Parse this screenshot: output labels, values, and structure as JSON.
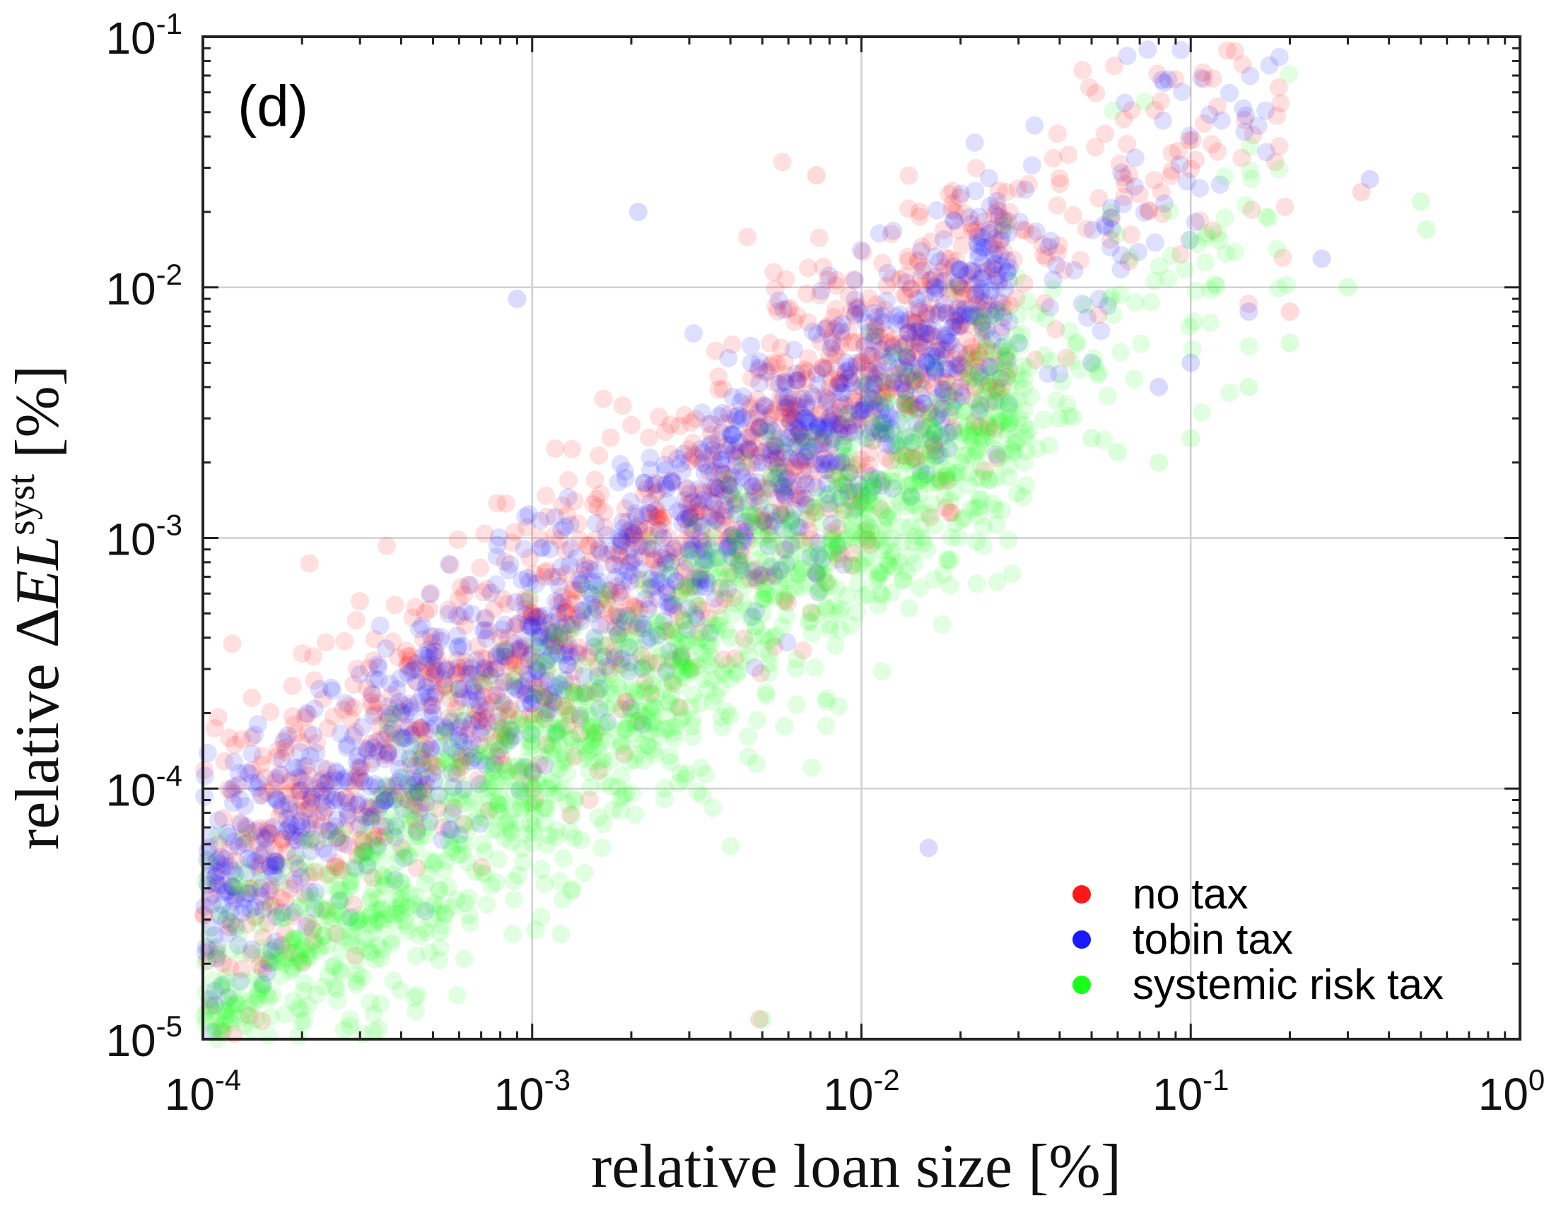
{
  "chart_data": {
    "type": "scatter",
    "panel_label": "(d)",
    "xscale": "log",
    "yscale": "log",
    "xlim": [
      0.0001,
      1
    ],
    "ylim": [
      1e-05,
      0.1
    ],
    "grid": true,
    "legend_position": "bottom-right",
    "xlabel": "relative loan size [%]",
    "ylabel": {
      "prefix": "relative ",
      "delta": "Δ",
      "main": "EL",
      "superscript": "syst",
      "suffix": " [%]"
    },
    "x_ticks": [
      {
        "value": 0.0001,
        "base": "10",
        "exp": "-4"
      },
      {
        "value": 0.001,
        "base": "10",
        "exp": "-3"
      },
      {
        "value": 0.01,
        "base": "10",
        "exp": "-2"
      },
      {
        "value": 0.1,
        "base": "10",
        "exp": "-1"
      },
      {
        "value": 1,
        "base": "10",
        "exp": "0"
      }
    ],
    "y_ticks": [
      {
        "value": 1e-05,
        "base": "10",
        "exp": "-5"
      },
      {
        "value": 0.0001,
        "base": "10",
        "exp": "-4"
      },
      {
        "value": 0.001,
        "base": "10",
        "exp": "-3"
      },
      {
        "value": 0.01,
        "base": "10",
        "exp": "-2"
      },
      {
        "value": 0.1,
        "base": "10",
        "exp": "-1"
      }
    ],
    "series": [
      {
        "name": "no tax",
        "color": "#ff1a1a",
        "trend": "log10(y) ≈ log10(x) − 0.4, spread ≈ 0.3 decades",
        "points": [
          [
            0.00012,
            2.8e-05
          ],
          [
            0.00015,
            5e-05
          ],
          [
            0.0002,
            9e-05
          ],
          [
            0.00025,
            0.00011
          ],
          [
            0.0003,
            0.00012
          ],
          [
            0.0004,
            0.0002
          ],
          [
            0.0005,
            0.0003
          ],
          [
            0.0006,
            0.00025
          ],
          [
            0.0008,
            0.0004
          ],
          [
            0.001,
            0.0005
          ],
          [
            0.0012,
            0.0007
          ],
          [
            0.0015,
            0.0008
          ],
          [
            0.002,
            0.001
          ],
          [
            0.0025,
            0.0012
          ],
          [
            0.003,
            0.0015
          ],
          [
            0.004,
            0.0018
          ],
          [
            0.005,
            0.0022
          ],
          [
            0.006,
            0.003
          ],
          [
            0.008,
            0.004
          ],
          [
            0.01,
            0.005
          ],
          [
            0.012,
            0.006
          ],
          [
            0.015,
            0.008
          ],
          [
            0.02,
            0.01
          ],
          [
            0.025,
            0.012
          ],
          [
            0.0073,
            0.028
          ],
          [
            0.2,
            0.008
          ],
          [
            0.33,
            0.024
          ],
          [
            0.0028,
            0.00021
          ],
          [
            0.0049,
            1.2e-05
          ]
        ]
      },
      {
        "name": "tobin tax",
        "color": "#1a1aff",
        "trend": "log10(y) ≈ log10(x) − 0.45, spread ≈ 0.25 decades",
        "points": [
          [
            0.00011,
            2.1e-05
          ],
          [
            0.00015,
            4e-05
          ],
          [
            0.0002,
            7e-05
          ],
          [
            0.00025,
            9e-05
          ],
          [
            0.0003,
            0.00011
          ],
          [
            0.0004,
            0.00016
          ],
          [
            0.0005,
            0.0002
          ],
          [
            0.0006,
            0.00025
          ],
          [
            0.0008,
            0.00035
          ],
          [
            0.001,
            0.00045
          ],
          [
            0.0012,
            0.0005
          ],
          [
            0.0015,
            0.0006
          ],
          [
            0.002,
            0.0008
          ],
          [
            0.0025,
            0.001
          ],
          [
            0.003,
            0.0012
          ],
          [
            0.004,
            0.0015
          ],
          [
            0.005,
            0.002
          ],
          [
            0.006,
            0.0025
          ],
          [
            0.008,
            0.003
          ],
          [
            0.01,
            0.004
          ],
          [
            0.012,
            0.005
          ],
          [
            0.015,
            0.006
          ],
          [
            0.02,
            0.007
          ],
          [
            0.03,
            0.006
          ],
          [
            0.05,
            0.005
          ],
          [
            0.08,
            0.004
          ],
          [
            0.1,
            0.005
          ],
          [
            0.15,
            0.008
          ],
          [
            0.25,
            0.013
          ],
          [
            0.35,
            0.027
          ],
          [
            0.0021,
            0.02
          ],
          [
            0.0009,
            0.009
          ],
          [
            0.016,
            5.8e-05
          ]
        ]
      },
      {
        "name": "systemic risk tax",
        "color": "#1aff1a",
        "trend": "log10(y) ≈ log10(x) − 0.95, spread ≈ 0.25 decades",
        "points": [
          [
            0.00012,
            1.2e-05
          ],
          [
            0.00015,
            1.6e-05
          ],
          [
            0.0002,
            2e-05
          ],
          [
            0.0003,
            3e-05
          ],
          [
            0.0004,
            4e-05
          ],
          [
            0.0005,
            5e-05
          ],
          [
            0.0006,
            6e-05
          ],
          [
            0.0008,
            8e-05
          ],
          [
            0.001,
            0.0001
          ],
          [
            0.0012,
            0.00012
          ],
          [
            0.0015,
            0.00015
          ],
          [
            0.002,
            0.0002
          ],
          [
            0.0025,
            0.00025
          ],
          [
            0.003,
            0.0003
          ],
          [
            0.004,
            0.0004
          ],
          [
            0.005,
            0.0005
          ],
          [
            0.006,
            0.0006
          ],
          [
            0.008,
            0.0008
          ],
          [
            0.01,
            0.001
          ],
          [
            0.012,
            0.0012
          ],
          [
            0.015,
            0.0015
          ],
          [
            0.02,
            0.002
          ],
          [
            0.025,
            0.0025
          ],
          [
            0.03,
            0.003
          ],
          [
            0.04,
            0.003
          ],
          [
            0.05,
            0.0025
          ],
          [
            0.06,
            0.0022
          ],
          [
            0.08,
            0.002
          ],
          [
            0.1,
            0.0025
          ],
          [
            0.15,
            0.004
          ],
          [
            0.2,
            0.006
          ],
          [
            0.3,
            0.01
          ],
          [
            0.5,
            0.022
          ],
          [
            0.52,
            0.017
          ],
          [
            0.005,
            1.2e-05
          ]
        ]
      }
    ]
  }
}
